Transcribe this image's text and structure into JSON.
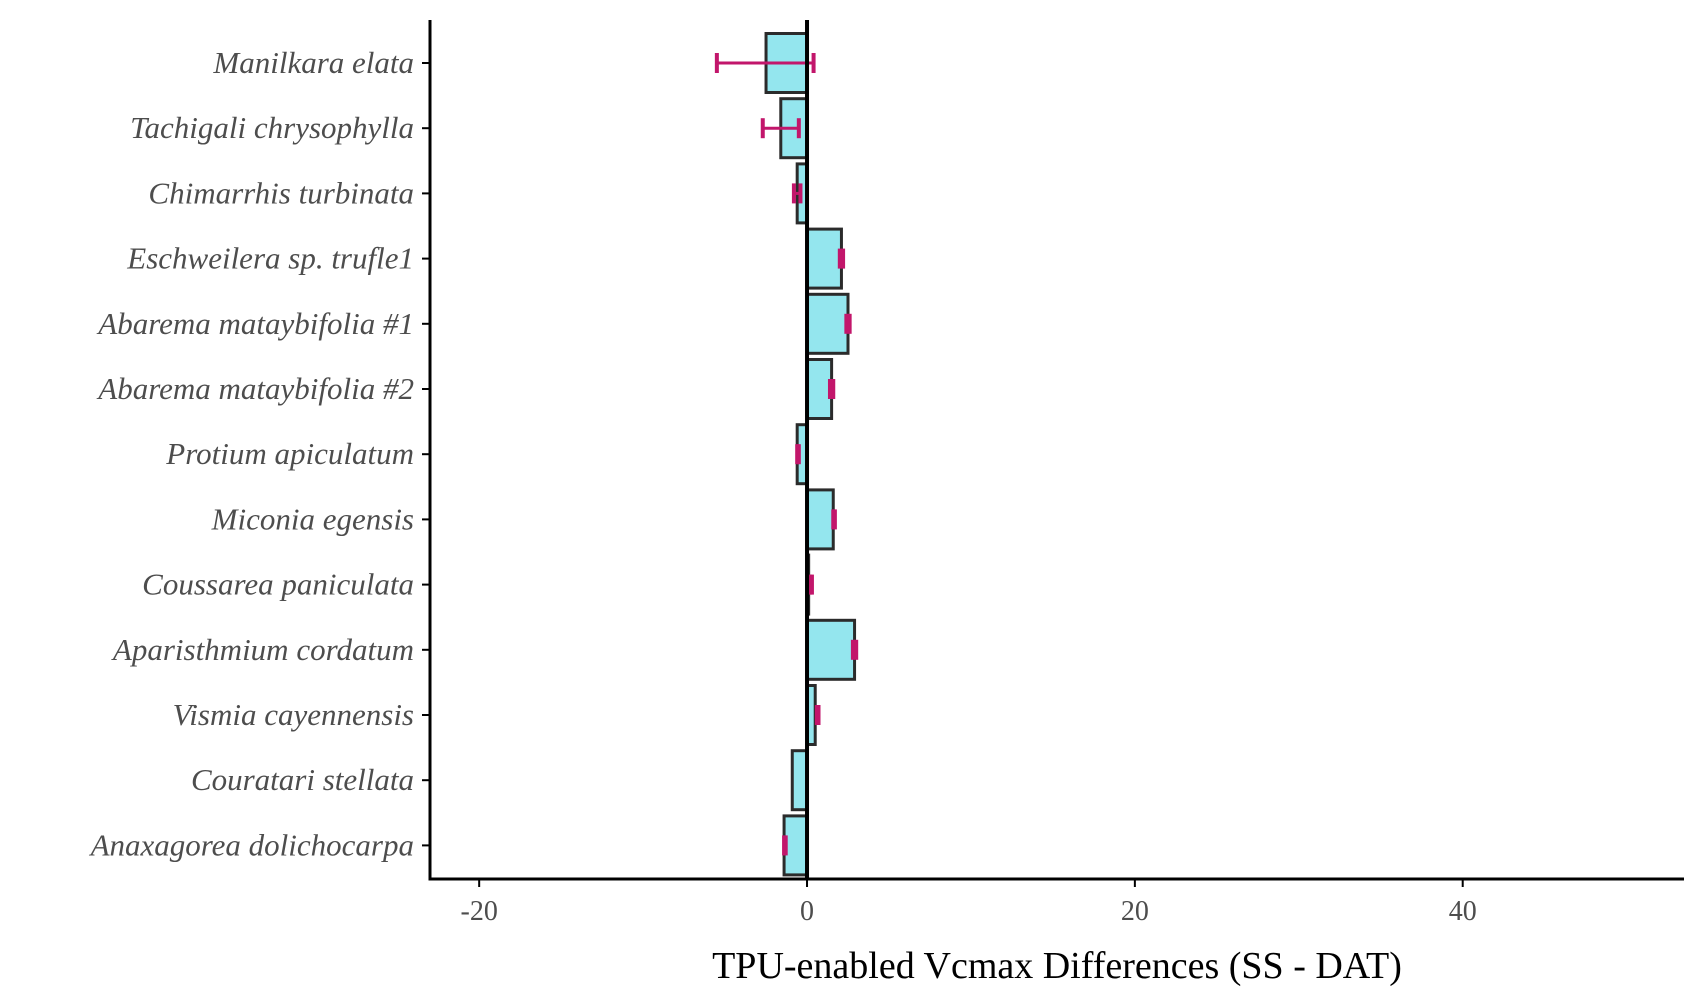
{
  "chart_data": {
    "type": "bar",
    "orientation": "horizontal",
    "xlabel": "TPU-enabled Vcmax Differences (SS - DAT)",
    "ylabel": "",
    "xlim": [
      -23,
      53.5
    ],
    "xticks": [
      -20,
      0,
      20,
      40
    ],
    "xtick_labels": [
      "-20",
      "0",
      "20",
      "40"
    ],
    "grid": false,
    "legend": "none",
    "colors": {
      "bar_fill": "#94e6ee",
      "bar_stroke": "#2b2b2b",
      "error_bar": "#c2166b",
      "zero_line": "#000000",
      "axis": "#000000"
    },
    "categories": [
      "Manilkara elata",
      "Tachigali chrysophylla",
      "Chimarrhis turbinata",
      "Eschweilera sp. trufle1",
      "Abarema mataybifolia #1",
      "Abarema mataybifolia #2",
      "Protium apiculatum",
      "Miconia egensis",
      "Coussarea paniculata",
      "Aparisthmium cordatum",
      "Vismia cayennensis",
      "Couratari stellata",
      "Anaxagorea dolichocarpa"
    ],
    "values": [
      -2.5,
      -1.6,
      -0.6,
      2.1,
      2.5,
      1.5,
      -0.6,
      1.6,
      0.1,
      2.9,
      0.5,
      -0.9,
      -1.4
    ],
    "error_low": [
      -5.5,
      -2.7,
      -0.8,
      2.0,
      2.4,
      1.4,
      -0.6,
      1.6,
      0.2,
      2.8,
      0.6,
      null,
      -1.4
    ],
    "error_high": [
      0.4,
      -0.5,
      -0.4,
      2.2,
      2.6,
      1.6,
      -0.5,
      1.7,
      0.3,
      3.0,
      0.7,
      null,
      -1.3
    ]
  }
}
